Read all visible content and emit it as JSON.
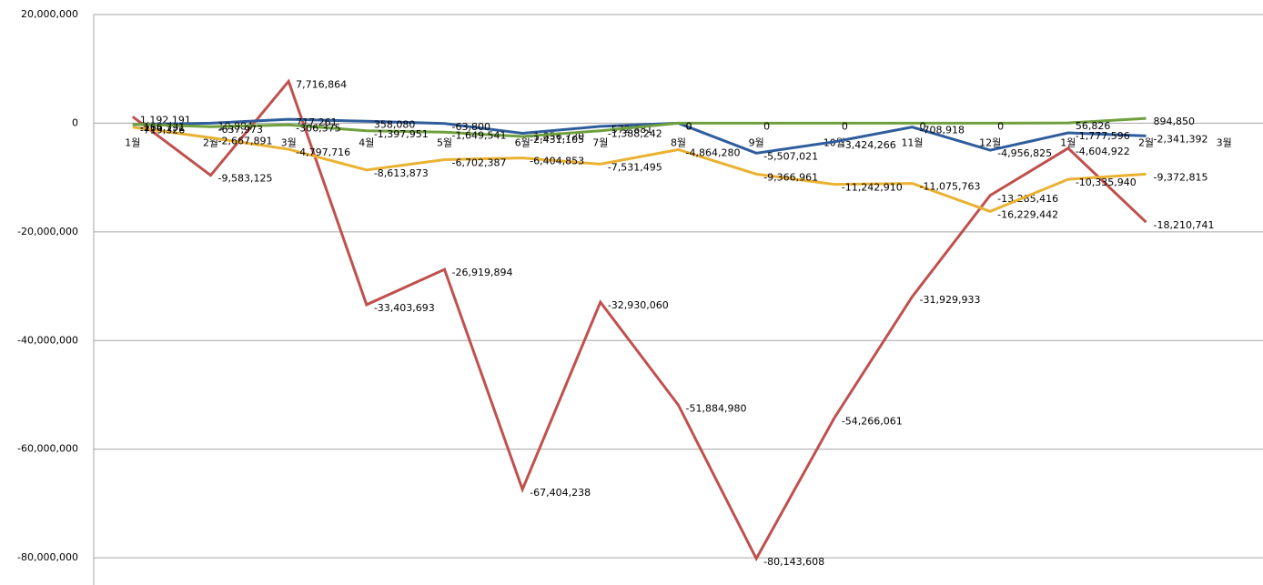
{
  "chart_data": {
    "type": "line",
    "categories": [
      "1월",
      "2월",
      "3월",
      "4월",
      "5월",
      "6월",
      "7월",
      "8월",
      "9월",
      "10월",
      "11월",
      "12월",
      "1월",
      "2월",
      "3월"
    ],
    "ylim": [
      -85000000,
      20000000
    ],
    "yticks": [
      {
        "value": 20000000,
        "label": "20,000,000"
      },
      0,
      {
        "value": -20000000,
        "label": "-20,000,000"
      },
      {
        "value": -40000000,
        "label": "-40,000,000"
      },
      {
        "value": -60000000,
        "label": "-60,000,000"
      },
      {
        "value": -80000000,
        "label": "-80,000,000"
      }
    ],
    "grid": true,
    "series": [
      {
        "color": "#c0504d",
        "values": [
          1192191,
          -9583125,
          7716864,
          -33403693,
          -26919894,
          -67404238,
          -32930060,
          -51884980,
          -80143608,
          -54266061,
          -31929933,
          -13285416,
          -4604922,
          -18210741,
          null
        ],
        "value_labels": [
          "1,192,191",
          "-9,583,125",
          "7,716,864",
          "-33,403,693",
          "-26,919,894",
          "-67,404,238",
          "-32,930,060",
          "-51,884,980",
          "-80,143,608",
          "-54,266,061",
          "-31,929,933",
          "-13,285,416",
          "-4,604,922",
          "-18,210,741",
          null
        ]
      },
      {
        "color": "#eab232",
        "values": [
          -719326,
          -2667891,
          -4797716,
          -8613873,
          -6702387,
          -6404853,
          -7531495,
          -4864280,
          -9366961,
          -11242910,
          -11075763,
          -16229442,
          -10335940,
          -9372815,
          null
        ],
        "value_labels": [
          "-719,326",
          "-2,667,891",
          "-4,797,716",
          "-8,613,873",
          "-6,702,387",
          "-6,404,853",
          "-7,531,495",
          "-4,864,280",
          "-9,366,961",
          "-11,242,910",
          "-11,075,763",
          "-16,229,442",
          "-10,335,940",
          "-9,372,815",
          null
        ]
      },
      {
        "color": "#2f5d9c",
        "values": [
          -234192,
          10884,
          717261,
          358080,
          -63800,
          -1856720,
          -572881,
          0,
          -5507021,
          -3424266,
          -708918,
          -4956825,
          -1777596,
          -2341392,
          null
        ],
        "value_labels": [
          "-234,192",
          "10,884",
          "717,261",
          "358,080",
          "-63,800",
          "-1,856,720",
          "-572,881",
          "0",
          "-5,507,021",
          "-3,424,266",
          "-708,918",
          "-4,956,825",
          "-1,777,596",
          "-2,341,392",
          null
        ]
      },
      {
        "color": "#6fa03d",
        "values": [
          -166731,
          -637973,
          -306375,
          -1397951,
          -1649541,
          -2431105,
          -1388242,
          0,
          0,
          0,
          0,
          0,
          56826,
          894850,
          null
        ],
        "value_labels": [
          "-166,731",
          "-637,973",
          "-306,375",
          "-1,397,951",
          "-1,649,541",
          "-2,431,105",
          "-1,388,242",
          "0",
          "0",
          "0",
          "0",
          "0",
          "56,826",
          "894,850",
          null
        ]
      }
    ]
  }
}
